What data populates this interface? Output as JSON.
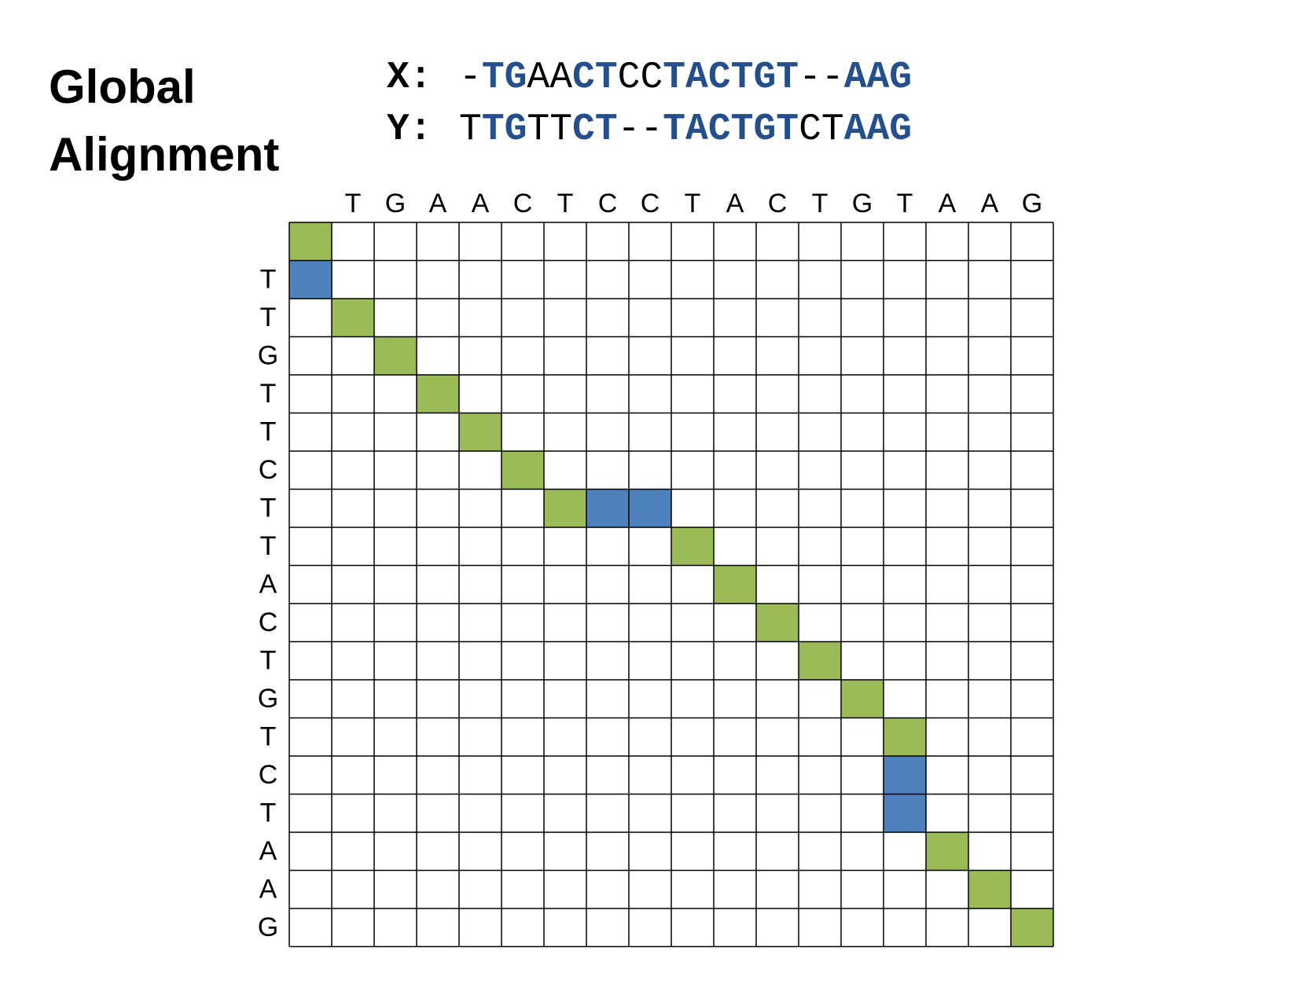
{
  "title": {
    "line1": "Global",
    "line2": "Alignment"
  },
  "alignment": [
    {
      "label": "X:",
      "segments": [
        {
          "text": "-",
          "style": "plain"
        },
        {
          "text": "TG",
          "style": "match"
        },
        {
          "text": "AA",
          "style": "plain"
        },
        {
          "text": "CT",
          "style": "match"
        },
        {
          "text": "CC",
          "style": "plain"
        },
        {
          "text": "TACTGT",
          "style": "match"
        },
        {
          "text": "--",
          "style": "plain"
        },
        {
          "text": "AAG",
          "style": "match"
        }
      ]
    },
    {
      "label": "Y:",
      "segments": [
        {
          "text": "T",
          "style": "plain"
        },
        {
          "text": "TG",
          "style": "match"
        },
        {
          "text": "TT",
          "style": "plain"
        },
        {
          "text": "CT",
          "style": "match"
        },
        {
          "text": "--",
          "style": "plain"
        },
        {
          "text": "TACTGT",
          "style": "match"
        },
        {
          "text": "CT",
          "style": "plain"
        },
        {
          "text": "AAG",
          "style": "match"
        }
      ]
    }
  ],
  "styles": {
    "plain": {
      "color": "#000000",
      "weight": "normal"
    },
    "match": {
      "color": "#254f8c",
      "weight": "bold"
    }
  },
  "grid": {
    "columns": [
      "T",
      "G",
      "A",
      "A",
      "C",
      "T",
      "C",
      "C",
      "T",
      "A",
      "C",
      "T",
      "G",
      "T",
      "A",
      "A",
      "G"
    ],
    "rows": [
      "T",
      "T",
      "G",
      "T",
      "T",
      "C",
      "T",
      "T",
      "A",
      "C",
      "T",
      "G",
      "T",
      "C",
      "T",
      "A",
      "A",
      "G"
    ],
    "highlights": [
      {
        "row": 0,
        "col": 0,
        "color": "#9bbb59"
      },
      {
        "row": 1,
        "col": 0,
        "color": "#4f81bd"
      },
      {
        "row": 2,
        "col": 1,
        "color": "#9bbb59"
      },
      {
        "row": 3,
        "col": 2,
        "color": "#9bbb59"
      },
      {
        "row": 4,
        "col": 3,
        "color": "#9bbb59"
      },
      {
        "row": 5,
        "col": 4,
        "color": "#9bbb59"
      },
      {
        "row": 6,
        "col": 5,
        "color": "#9bbb59"
      },
      {
        "row": 7,
        "col": 6,
        "color": "#9bbb59"
      },
      {
        "row": 7,
        "col": 7,
        "color": "#4f81bd"
      },
      {
        "row": 7,
        "col": 8,
        "color": "#4f81bd"
      },
      {
        "row": 8,
        "col": 9,
        "color": "#9bbb59"
      },
      {
        "row": 9,
        "col": 10,
        "color": "#9bbb59"
      },
      {
        "row": 10,
        "col": 11,
        "color": "#9bbb59"
      },
      {
        "row": 11,
        "col": 12,
        "color": "#9bbb59"
      },
      {
        "row": 12,
        "col": 13,
        "color": "#9bbb59"
      },
      {
        "row": 13,
        "col": 14,
        "color": "#9bbb59"
      },
      {
        "row": 14,
        "col": 14,
        "color": "#4f81bd"
      },
      {
        "row": 15,
        "col": 14,
        "color": "#4f81bd"
      },
      {
        "row": 16,
        "col": 15,
        "color": "#9bbb59"
      },
      {
        "row": 17,
        "col": 16,
        "color": "#9bbb59"
      },
      {
        "row": 18,
        "col": 17,
        "color": "#9bbb59"
      }
    ]
  }
}
